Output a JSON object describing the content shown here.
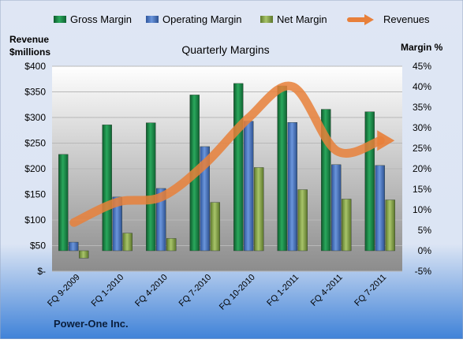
{
  "chart_data": {
    "type": "bar",
    "title": "Quarterly Margins",
    "company": "Power-One Inc.",
    "categories": [
      "FQ 9-2009",
      "FQ 1-2010",
      "FQ 4-2010",
      "FQ 7-2010",
      "FQ 10-2010",
      "FQ 1-2011",
      "FQ 4-2011",
      "FQ 7-2011"
    ],
    "left_axis": {
      "label_line1": "Revenue",
      "label_line2": "$millions",
      "ylim": [
        0,
        400
      ],
      "ticks": [
        0,
        50,
        100,
        150,
        200,
        250,
        300,
        350,
        400
      ],
      "tick_labels": [
        "$-",
        "$50",
        "$100",
        "$150",
        "$200",
        "$250",
        "$300",
        "$350",
        "$400"
      ]
    },
    "right_axis": {
      "label": "Margin %",
      "ylim": [
        -5,
        45
      ],
      "ticks": [
        -5,
        0,
        5,
        10,
        15,
        20,
        25,
        30,
        35,
        40,
        45
      ],
      "tick_labels": [
        "-5%",
        "0%",
        "5%",
        "10%",
        "15%",
        "20%",
        "25%",
        "30%",
        "35%",
        "40%",
        "45%"
      ]
    },
    "series": [
      {
        "name": "Gross Margin",
        "axis": "right",
        "kind": "bar",
        "color": "#1f8a4a",
        "values": [
          23.5,
          30.7,
          31.2,
          38.0,
          40.8,
          40.2,
          34.5,
          33.9
        ]
      },
      {
        "name": "Operating Margin",
        "axis": "right",
        "kind": "bar",
        "color": "#4a78c8",
        "values": [
          2.1,
          13.1,
          15.2,
          25.4,
          31.6,
          31.3,
          21.0,
          20.8
        ]
      },
      {
        "name": "Net Margin",
        "axis": "right",
        "kind": "bar",
        "color": "#8aaa4a",
        "values": [
          -1.8,
          4.3,
          3.0,
          11.8,
          20.3,
          14.9,
          12.6,
          12.4
        ]
      },
      {
        "name": "Revenues",
        "axis": "left",
        "kind": "line",
        "color": "#e8803a",
        "values": [
          95,
          135,
          145,
          210,
          300,
          360,
          235,
          255
        ]
      }
    ],
    "legend_position": "top",
    "grid": true
  }
}
